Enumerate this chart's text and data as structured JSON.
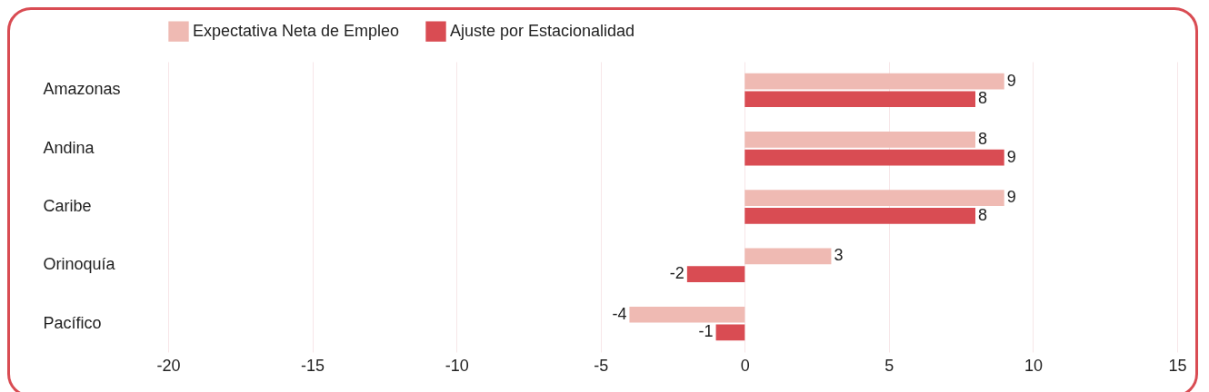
{
  "chart_data": {
    "type": "bar",
    "orientation": "horizontal",
    "categories": [
      "Amazonas",
      "Andina",
      "Caribe",
      "Orinoquía",
      "Pacífico"
    ],
    "series": [
      {
        "name": "Expectativa Neta de Empleo",
        "color": "#efbab3",
        "values": [
          9,
          8,
          9,
          3,
          -4
        ]
      },
      {
        "name": "Ajuste por Estacionalidad",
        "color": "#d94c53",
        "values": [
          8,
          9,
          8,
          -2,
          -1
        ]
      }
    ],
    "xlim": [
      -20,
      15
    ],
    "xticks": [
      -20,
      -15,
      -10,
      -5,
      0,
      5,
      10,
      15
    ],
    "grid": "x",
    "legend": "top",
    "data_labels": true
  }
}
